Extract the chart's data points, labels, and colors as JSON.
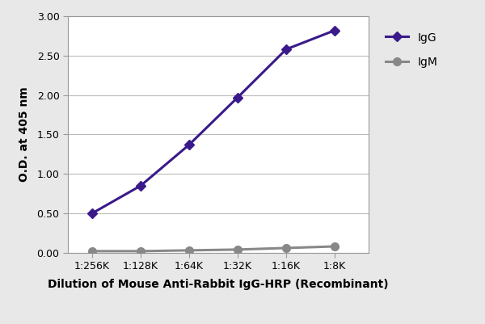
{
  "x_labels": [
    "1:256K",
    "1:128K",
    "1:64K",
    "1:32K",
    "1:16K",
    "1:8K"
  ],
  "x_positions": [
    1,
    2,
    3,
    4,
    5,
    6
  ],
  "IgG_values": [
    0.5,
    0.85,
    1.37,
    1.97,
    2.58,
    2.82
  ],
  "IgM_values": [
    0.02,
    0.02,
    0.03,
    0.04,
    0.06,
    0.08
  ],
  "IgG_color": "#3a1a8a",
  "IgM_color": "#888888",
  "ylabel": "O.D. at 405 nm",
  "xlabel": "Dilution of Mouse Anti-Rabbit IgG-HRP (Recombinant)",
  "ylim": [
    0.0,
    3.0
  ],
  "yticks": [
    0.0,
    0.5,
    1.0,
    1.5,
    2.0,
    2.5,
    3.0
  ],
  "ytick_labels": [
    "0.00",
    "0.50",
    "1.00",
    "1.50",
    "2.00",
    "2.50",
    "3.00"
  ],
  "background_color": "#e8e8e8",
  "plot_bg_color": "#ffffff",
  "grid_color": "#bbbbbb",
  "legend_IgG": "IgG",
  "legend_IgM": "IgM",
  "IgG_marker": "D",
  "IgM_marker": "o",
  "linewidth": 2.2,
  "IgG_markersize": 6,
  "IgM_markersize": 7
}
